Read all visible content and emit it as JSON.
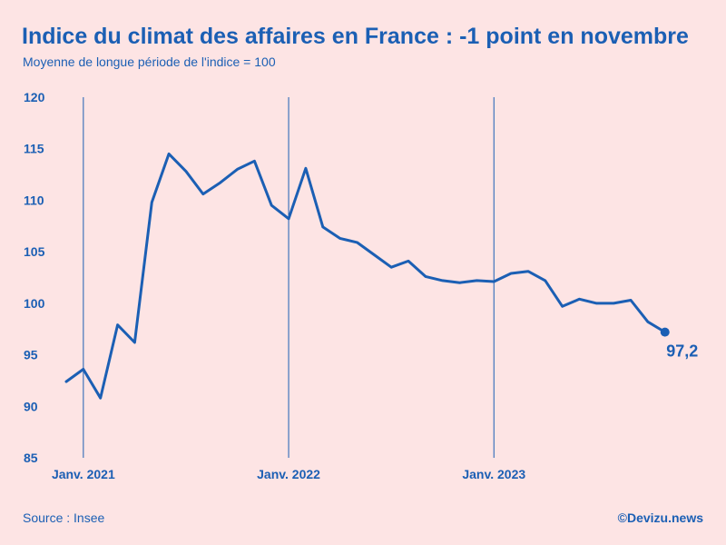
{
  "header": {
    "title": "Indice du climat des affaires en France : -1 point en novembre",
    "subtitle": "Moyenne de longue période de l'indice = 100"
  },
  "footer": {
    "source": "Source : Insee",
    "credit": "©Devizu.news"
  },
  "colors": {
    "background": "#fde4e4",
    "line": "#1b5fb4"
  },
  "chart_data": {
    "type": "line",
    "title": "Indice du climat des affaires en France : -1 point en novembre",
    "subtitle": "Moyenne de longue période de l'indice = 100",
    "ylim": [
      85,
      120
    ],
    "y_ticks": [
      120,
      115,
      110,
      105,
      100,
      95,
      90,
      85
    ],
    "x_ticks": [
      {
        "label": "Janv. 2021",
        "x": "2021-01"
      },
      {
        "label": "Janv. 2022",
        "x": "2022-01"
      },
      {
        "label": "Janv. 2023",
        "x": "2023-01"
      }
    ],
    "grid": "vertical lines at January of each year",
    "series": [
      {
        "x": [
          "2020-12",
          "2021-01",
          "2021-02",
          "2021-03",
          "2021-04",
          "2021-05",
          "2021-06",
          "2021-07",
          "2021-08",
          "2021-09",
          "2021-10",
          "2021-11",
          "2021-12",
          "2022-01",
          "2022-02",
          "2022-03",
          "2022-04",
          "2022-05",
          "2022-06",
          "2022-07",
          "2022-08",
          "2022-09",
          "2022-10",
          "2022-11",
          "2022-12",
          "2023-01",
          "2023-02",
          "2023-03",
          "2023-04",
          "2023-05",
          "2023-06",
          "2023-07",
          "2023-08",
          "2023-09",
          "2023-10",
          "2023-11"
        ],
        "values": [
          92.4,
          93.6,
          90.8,
          97.9,
          96.2,
          109.8,
          114.5,
          112.8,
          110.6,
          111.7,
          113.0,
          113.8,
          109.5,
          108.2,
          113.1,
          107.4,
          106.3,
          105.9,
          104.7,
          103.5,
          104.1,
          102.6,
          102.2,
          102.0,
          102.2,
          102.1,
          102.9,
          103.1,
          102.2,
          99.7,
          100.4,
          100.0,
          100.0,
          100.3,
          98.2,
          97.2
        ]
      }
    ],
    "last_value_label": "97,2"
  }
}
